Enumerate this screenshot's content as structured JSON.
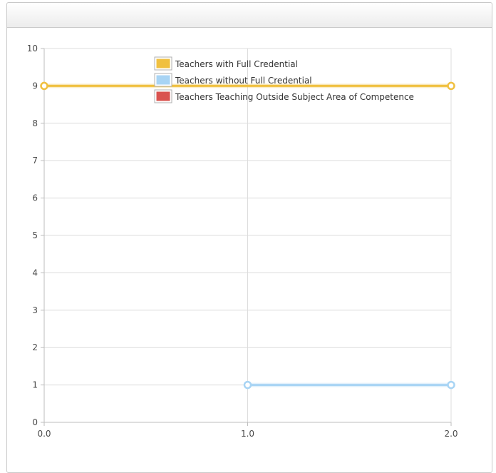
{
  "panel": {
    "title": ""
  },
  "chart_data": {
    "type": "line",
    "title": "",
    "xlabel": "",
    "ylabel": "",
    "xlim": [
      0,
      2
    ],
    "ylim": [
      0,
      10
    ],
    "x_ticks": [
      "0.0",
      "1.0",
      "2.0"
    ],
    "y_ticks": [
      "0",
      "1",
      "2",
      "3",
      "4",
      "5",
      "6",
      "7",
      "8",
      "9",
      "10"
    ],
    "grid": true,
    "legend_position": "top-center",
    "series": [
      {
        "name": "Teachers with Full Credential",
        "color": "#f0c040",
        "points": [
          {
            "x": 0,
            "y": 9
          },
          {
            "x": 2,
            "y": 9
          }
        ]
      },
      {
        "name": "Teachers without Full Credential",
        "color": "#a8d4f4",
        "points": [
          {
            "x": 1,
            "y": 1
          },
          {
            "x": 2,
            "y": 1
          }
        ]
      },
      {
        "name": "Teachers Teaching Outside Subject Area of Competence",
        "color": "#d9534f",
        "points": []
      }
    ]
  }
}
